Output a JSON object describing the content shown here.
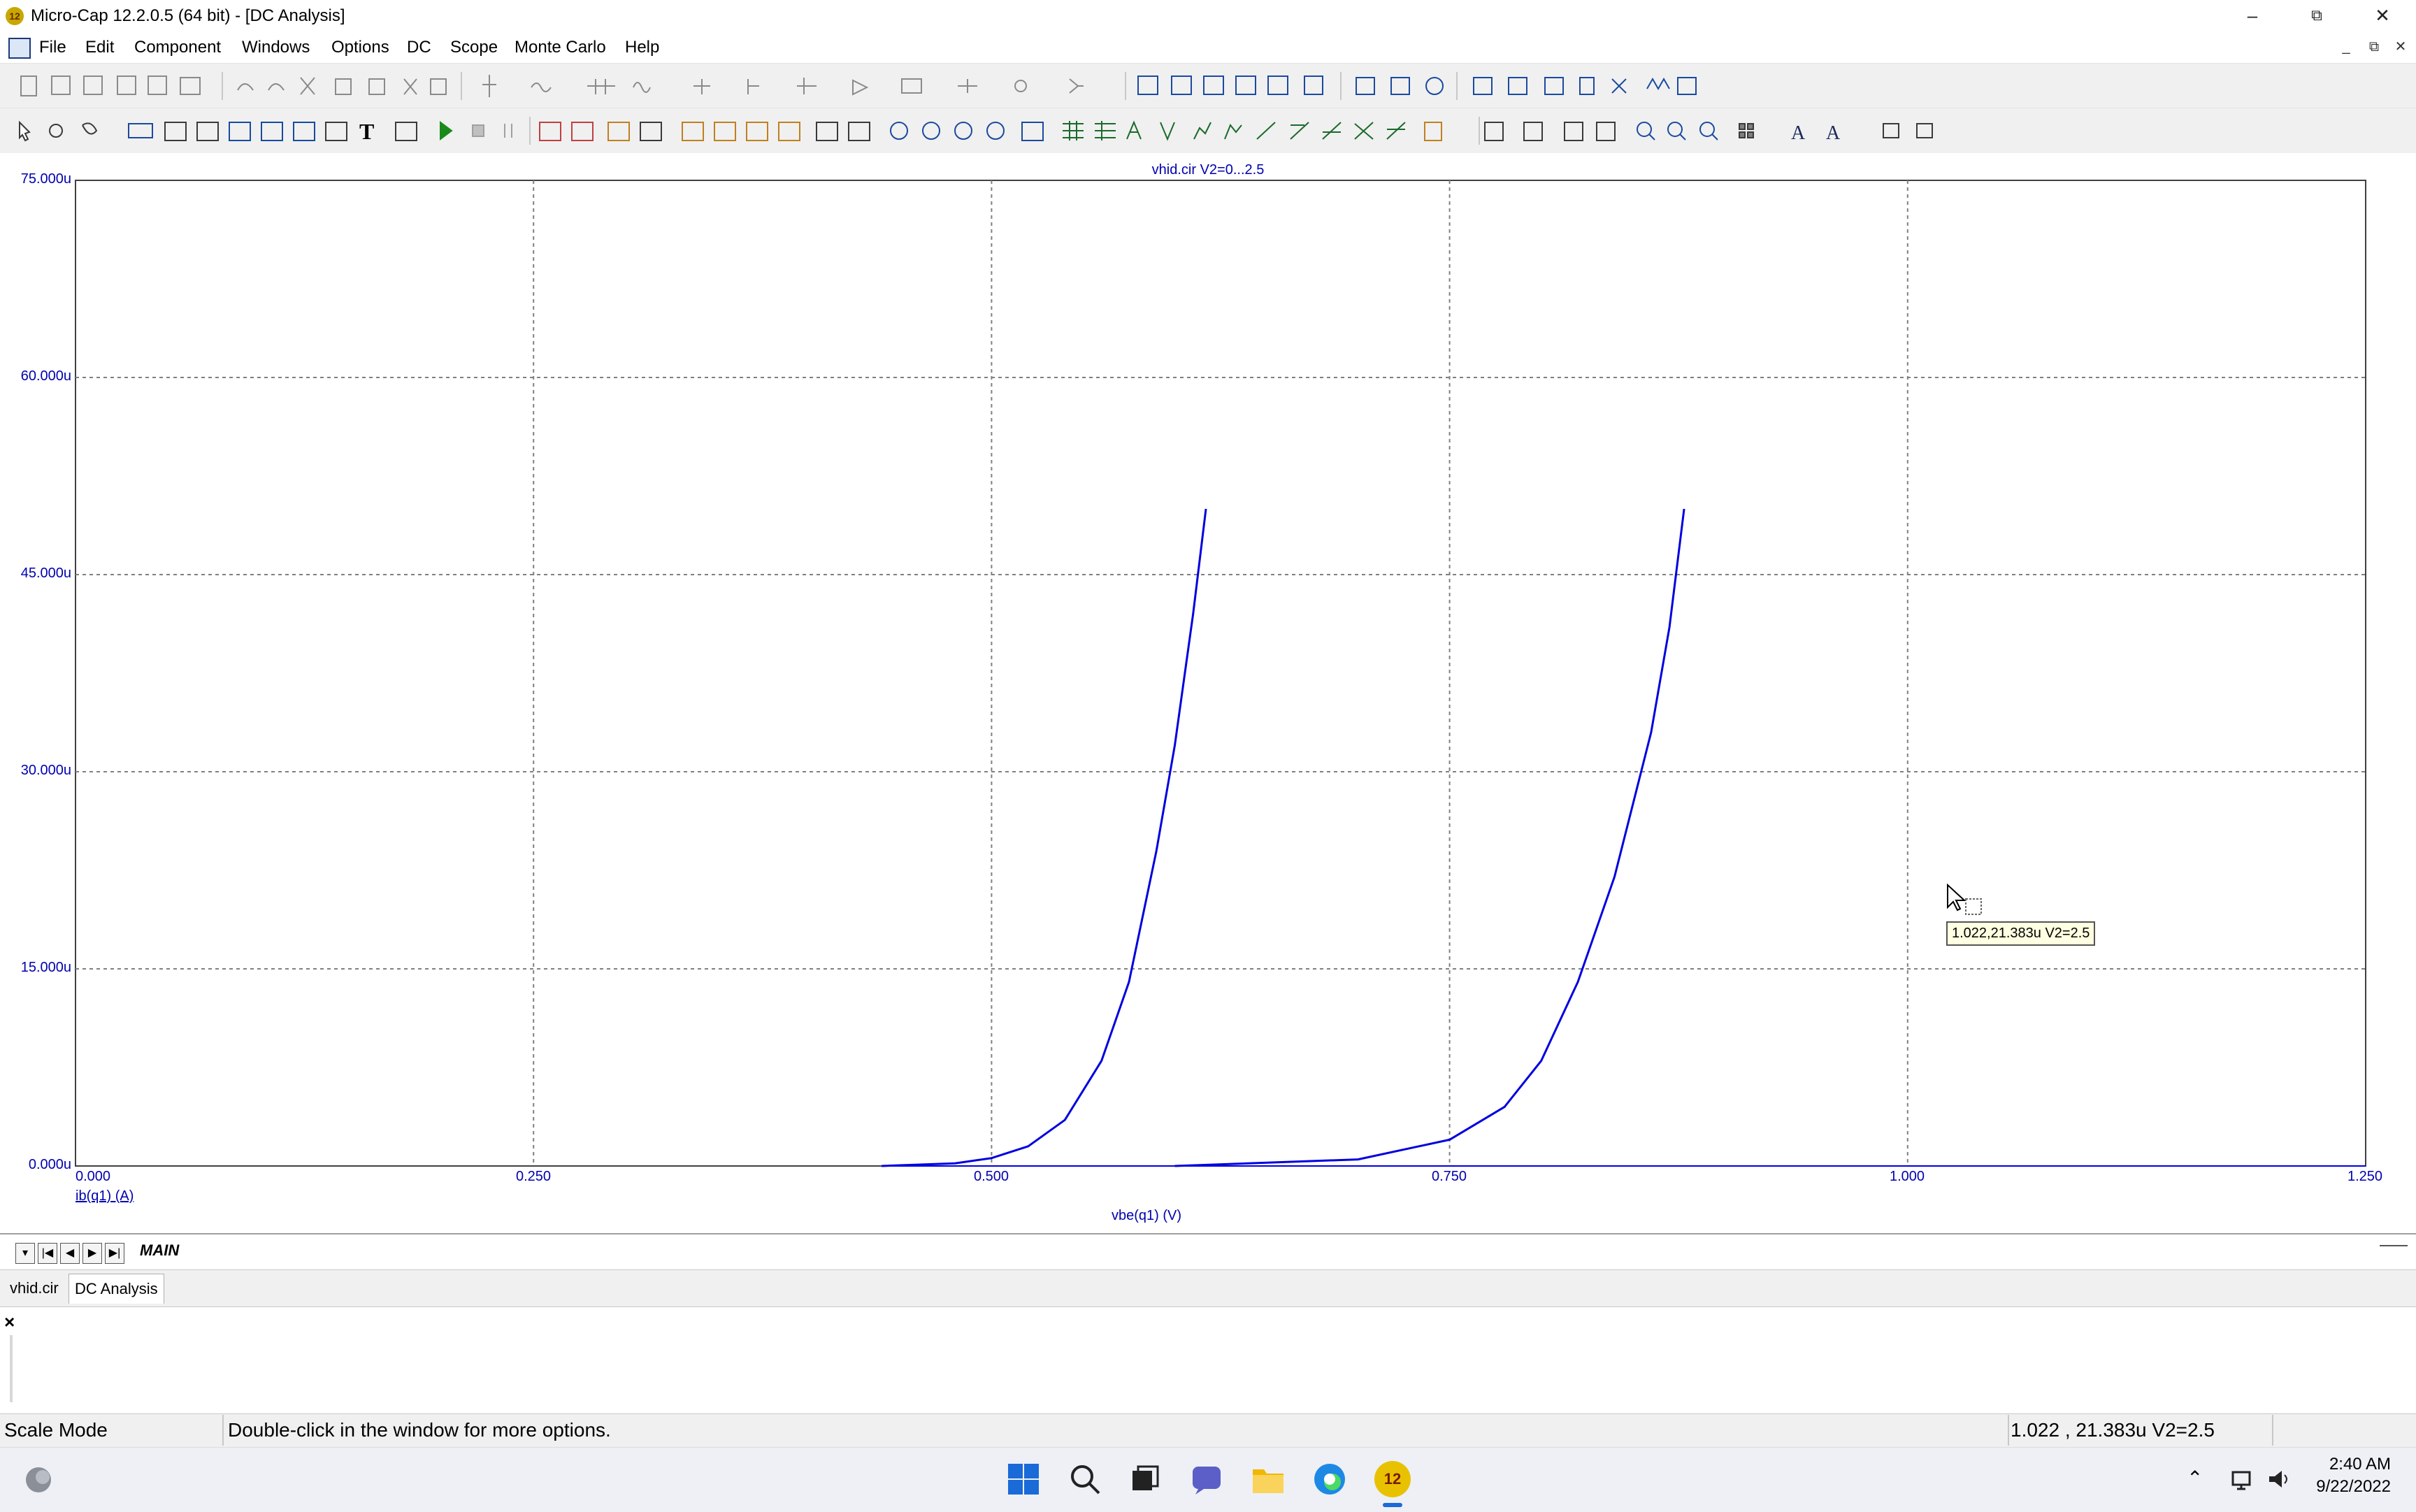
{
  "window": {
    "title": "Micro-Cap 12.2.0.5 (64 bit) - [DC Analysis]",
    "app_icon_label": "12",
    "controls": {
      "minimize": "–",
      "restore": "⧉",
      "close": "✕"
    }
  },
  "menu": {
    "items": [
      "File",
      "Edit",
      "Component",
      "Windows",
      "Options",
      "DC",
      "Scope",
      "Monte Carlo",
      "Help"
    ],
    "mdi_controls": {
      "minimize": "_",
      "restore": "⧉",
      "close": "✕"
    }
  },
  "plot": {
    "header": "vhid.cir V2=0...2.5",
    "y_expression": "ib(q1) (A)",
    "x_expression": "vbe(q1) (V)",
    "y_ticks": [
      "75.000u",
      "60.000u",
      "45.000u",
      "30.000u",
      "15.000u",
      "0.000u"
    ],
    "x_ticks": [
      "0.000",
      "0.250",
      "0.500",
      "0.750",
      "1.000",
      "1.250"
    ],
    "curve_color": "#0000e0",
    "grid_color": "#808080",
    "label_color": "#0000b0",
    "cursor_tooltip": "1.022,21.383u V2=2.5"
  },
  "chart_data": {
    "type": "line",
    "xlabel": "vbe(q1) (V)",
    "ylabel": "ib(q1) (A)",
    "title": "vhid.cir V2=0...2.5",
    "xlim": [
      0,
      1.25
    ],
    "ylim": [
      0,
      75
    ],
    "y_unit": "u",
    "grid": true,
    "series": [
      {
        "x": [
          0.44,
          0.48,
          0.5,
          0.52,
          0.54,
          0.56,
          0.575,
          0.59,
          0.6,
          0.61,
          0.617
        ],
        "y": [
          0.0,
          0.2,
          0.6,
          1.5,
          3.5,
          8.0,
          14.0,
          24.0,
          32.0,
          42.0,
          50.0
        ]
      },
      {
        "x": [
          0.6,
          0.7,
          0.75,
          0.78,
          0.8,
          0.82,
          0.84,
          0.86,
          0.87,
          0.878
        ],
        "y": [
          0.0,
          0.5,
          2.0,
          4.5,
          8.0,
          14.0,
          22.0,
          33.0,
          41.0,
          50.0
        ]
      }
    ]
  },
  "scope_tabs": {
    "active": "MAIN"
  },
  "doc_tabs": [
    "vhid.cir",
    "DC Analysis"
  ],
  "output_pane": {
    "close": "×"
  },
  "status": {
    "mode": "Scale Mode",
    "hint": "Double-click in the window for more options.",
    "readout": "1.022 , 21.383u V2=2.5"
  },
  "taskbar": {
    "time": "2:40 AM",
    "date": "9/22/2022",
    "app_badge": "12"
  }
}
